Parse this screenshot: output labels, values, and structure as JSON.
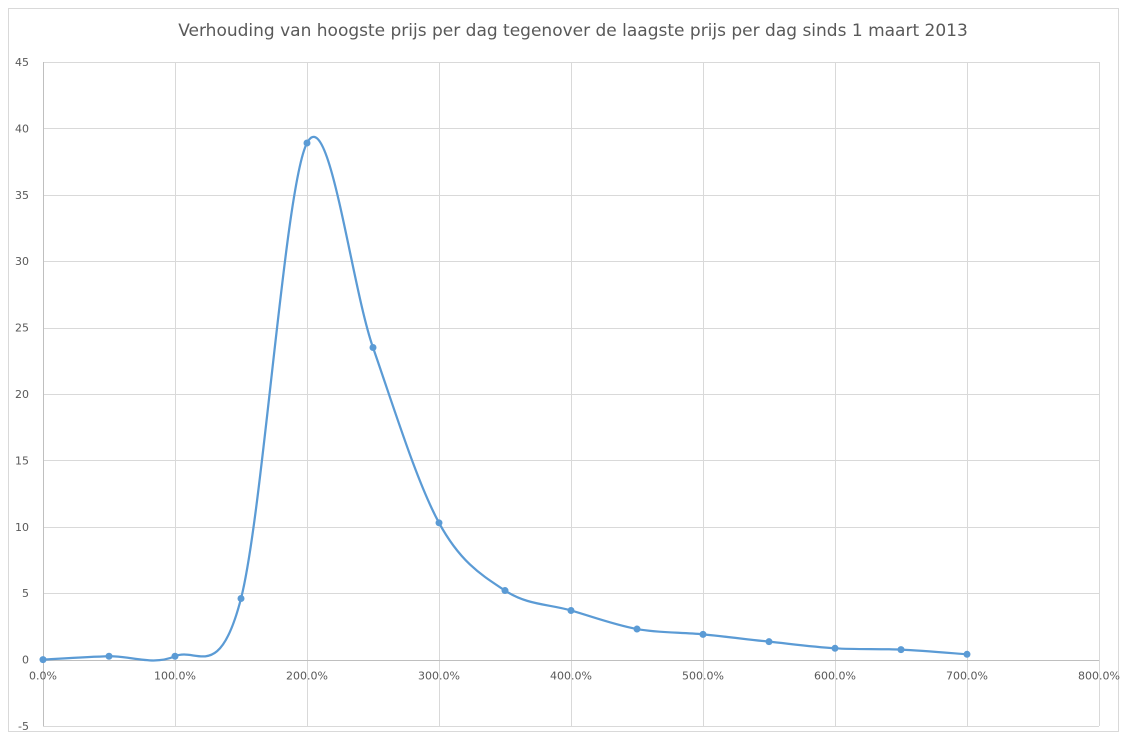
{
  "chart_data": {
    "type": "line",
    "title": "Verhouding van hoogste prijs per dag tegenover de laagste prijs per dag sinds 1 maart 2013",
    "xlabel": "",
    "ylabel": "",
    "smooth": true,
    "markers": true,
    "grid": true,
    "legend": "none",
    "xlim": [
      0,
      800
    ],
    "ylim": [
      -5,
      45
    ],
    "x_ticks": [
      0,
      100,
      200,
      300,
      400,
      500,
      600,
      700,
      800
    ],
    "x_tick_labels": [
      "0.0%",
      "100.0%",
      "200.0%",
      "300.0%",
      "400.0%",
      "500.0%",
      "600.0%",
      "700.0%",
      "800.0%"
    ],
    "y_ticks": [
      -5,
      0,
      5,
      10,
      15,
      20,
      25,
      30,
      35,
      40,
      45
    ],
    "y_tick_labels": [
      "-5",
      "0",
      "5",
      "10",
      "15",
      "20",
      "25",
      "30",
      "35",
      "40",
      "45"
    ],
    "series": [
      {
        "color": "#5b9bd5",
        "x": [
          0,
          50,
          100,
          150,
          200,
          250,
          300,
          350,
          400,
          450,
          500,
          550,
          600,
          650,
          700
        ],
        "y": [
          0,
          0.25,
          0.25,
          4.6,
          38.9,
          23.5,
          10.3,
          5.2,
          3.7,
          2.3,
          1.9,
          1.35,
          0.85,
          0.75,
          0.4
        ]
      }
    ]
  }
}
